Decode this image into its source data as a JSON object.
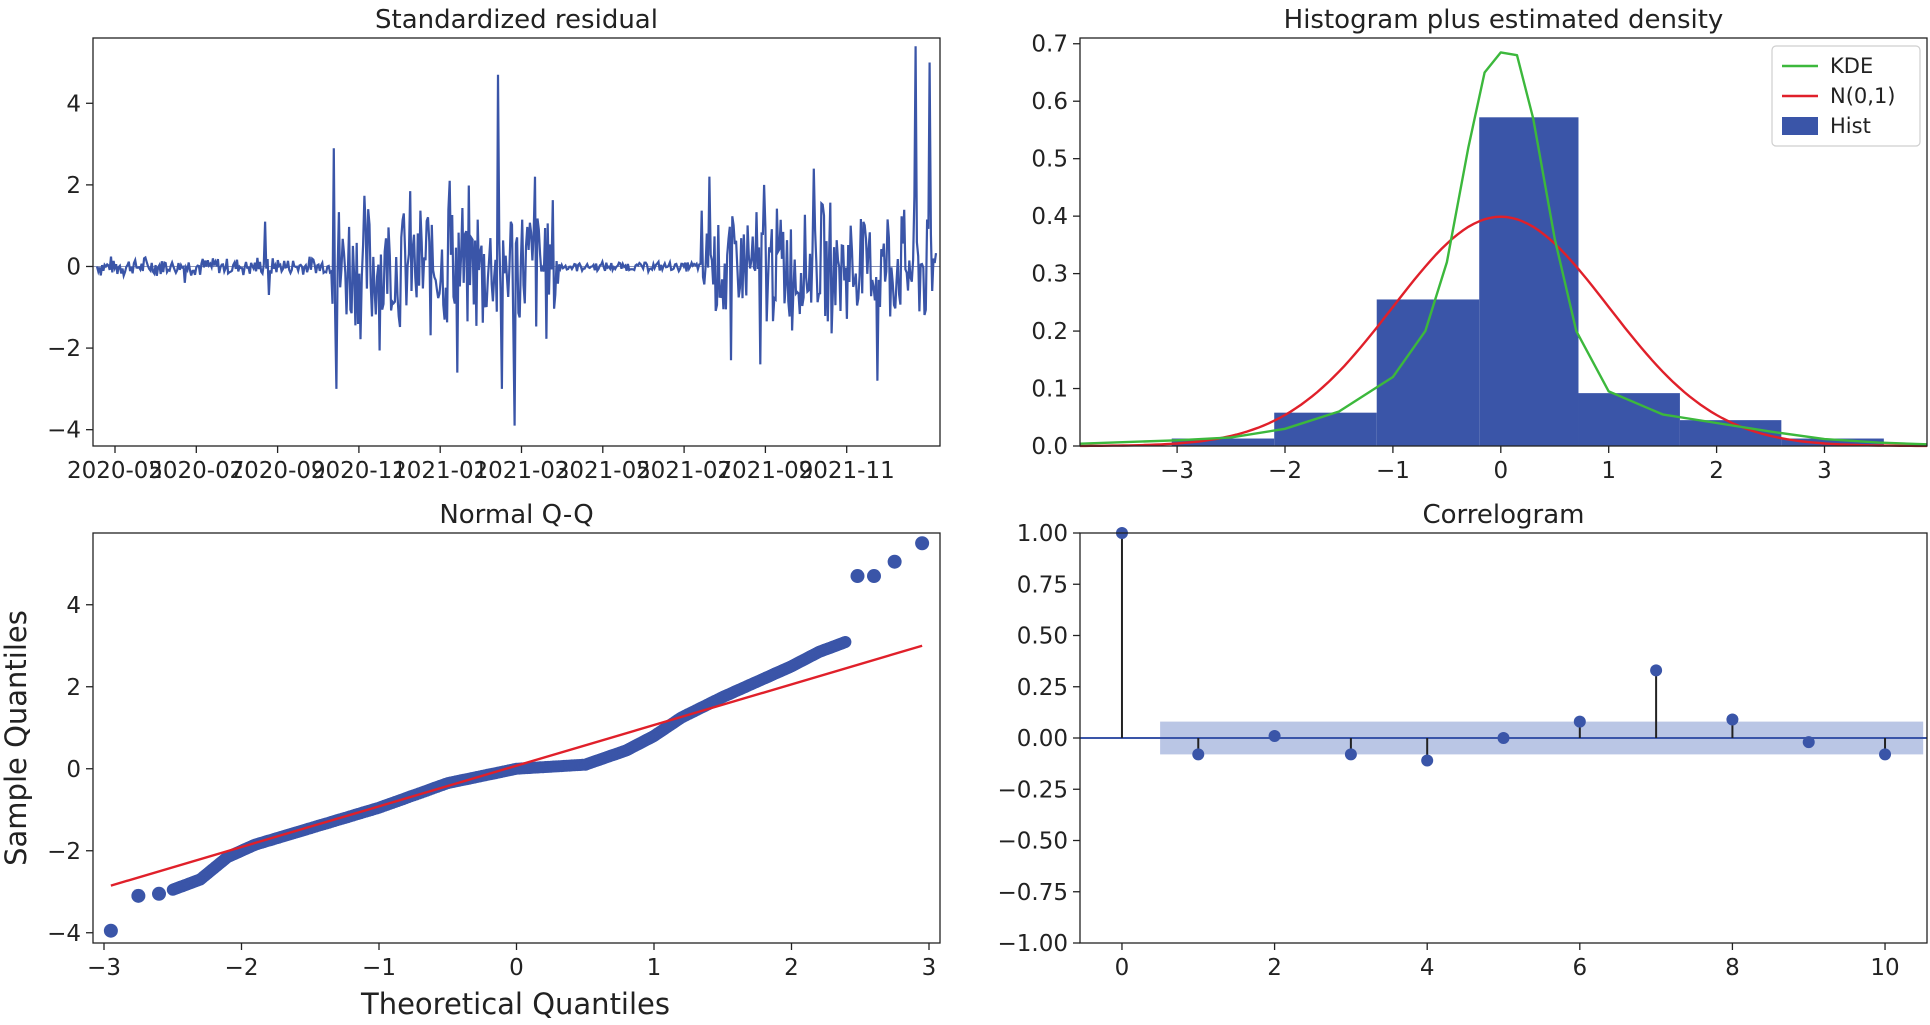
{
  "chart_data": [
    {
      "id": "resid",
      "type": "line",
      "title": "Standardized residual",
      "xlabel": "",
      "ylabel": "",
      "x_ticks": [
        "2020-05",
        "2020-07",
        "2020-09",
        "2020-11",
        "2021-01",
        "2021-03",
        "2021-05",
        "2021-07",
        "2021-09",
        "2021-11"
      ],
      "y_ticks": [
        -4,
        -2,
        0,
        2,
        4
      ],
      "ylim": [
        -4.4,
        5.6
      ],
      "grid": false,
      "color": "#3a55a8",
      "regimes": [
        {
          "start": 0.0,
          "end": 0.28,
          "amp": 0.2
        },
        {
          "start": 0.28,
          "end": 0.55,
          "amp": 1.5
        },
        {
          "start": 0.55,
          "end": 0.72,
          "amp": 0.1
        },
        {
          "start": 0.72,
          "end": 1.0,
          "amp": 1.3
        }
      ],
      "spikes": [
        {
          "pos": 0.105,
          "value": -0.4
        },
        {
          "pos": 0.2,
          "value": 1.1
        },
        {
          "pos": 0.205,
          "value": -0.7
        },
        {
          "pos": 0.282,
          "value": 2.9
        },
        {
          "pos": 0.286,
          "value": -3.0
        },
        {
          "pos": 0.42,
          "value": 2.1
        },
        {
          "pos": 0.43,
          "value": -2.6
        },
        {
          "pos": 0.478,
          "value": 4.7
        },
        {
          "pos": 0.483,
          "value": -3.0
        },
        {
          "pos": 0.498,
          "value": -3.9
        },
        {
          "pos": 0.522,
          "value": 2.2
        },
        {
          "pos": 0.73,
          "value": 2.2
        },
        {
          "pos": 0.755,
          "value": -2.3
        },
        {
          "pos": 0.79,
          "value": -2.4
        },
        {
          "pos": 0.795,
          "value": 2.0
        },
        {
          "pos": 0.855,
          "value": 2.4
        },
        {
          "pos": 0.93,
          "value": -2.8
        },
        {
          "pos": 0.975,
          "value": 5.4
        },
        {
          "pos": 0.98,
          "value": -1.1
        },
        {
          "pos": 0.993,
          "value": 5.0
        },
        {
          "pos": 0.996,
          "value": -0.6
        }
      ]
    },
    {
      "id": "hist",
      "type": "bar",
      "title": "Histogram plus estimated density",
      "xlabel": "",
      "ylabel": "",
      "xlim": [
        -3.9,
        3.95
      ],
      "ylim": [
        0,
        0.71
      ],
      "x_ticks": [
        -3,
        -2,
        -1,
        0,
        1,
        2,
        3
      ],
      "y_ticks": [
        0.0,
        0.1,
        0.2,
        0.3,
        0.4,
        0.5,
        0.6,
        0.7
      ],
      "y_tick_labels": [
        "0.0",
        "0.1",
        "0.2",
        "0.3",
        "0.4",
        "0.5",
        "0.6",
        "0.7"
      ],
      "bins": [
        {
          "x0": -3.05,
          "x1": -2.1,
          "value": 0.013
        },
        {
          "x0": -2.1,
          "x1": -1.15,
          "value": 0.058
        },
        {
          "x0": -1.15,
          "x1": -0.2,
          "value": 0.255
        },
        {
          "x0": -0.2,
          "x1": 0.72,
          "value": 0.572
        },
        {
          "x0": 0.72,
          "x1": 1.66,
          "value": 0.092
        },
        {
          "x0": 1.66,
          "x1": 2.6,
          "value": 0.045
        },
        {
          "x0": 2.6,
          "x1": 3.55,
          "value": 0.013
        }
      ],
      "kde": {
        "x": [
          -3.9,
          -3.0,
          -2.5,
          -2.0,
          -1.5,
          -1.0,
          -0.7,
          -0.5,
          -0.3,
          -0.15,
          0.0,
          0.15,
          0.3,
          0.5,
          0.7,
          1.0,
          1.5,
          2.0,
          2.5,
          3.0,
          3.5,
          3.95
        ],
        "y": [
          0.004,
          0.01,
          0.015,
          0.03,
          0.06,
          0.12,
          0.2,
          0.32,
          0.52,
          0.65,
          0.685,
          0.68,
          0.57,
          0.36,
          0.2,
          0.095,
          0.055,
          0.04,
          0.025,
          0.012,
          0.006,
          0.003
        ]
      },
      "series": [
        {
          "name": "KDE",
          "color": "#3cb83c"
        },
        {
          "name": "N(0,1)",
          "color": "#e0202a"
        },
        {
          "name": "Hist",
          "color": "#3a55a8"
        }
      ],
      "legend": "top-right",
      "grid": false
    },
    {
      "id": "qq",
      "type": "scatter",
      "title": "Normal Q-Q",
      "xlabel": "Theoretical Quantiles",
      "ylabel": "Sample Quantiles",
      "xlim": [
        -3.08,
        3.08
      ],
      "ylim": [
        -4.25,
        5.75
      ],
      "x_ticks": [
        -3,
        -2,
        -1,
        0,
        1,
        2,
        3
      ],
      "y_ticks": [
        -4,
        -2,
        0,
        2,
        4
      ],
      "reference_line": {
        "x": [
          -2.95,
          2.95
        ],
        "y": [
          -2.85,
          3.0
        ],
        "color": "#e0202a"
      },
      "points_color": "#3a55a8",
      "outliers": [
        {
          "x": -2.95,
          "y": -3.95
        },
        {
          "x": -2.75,
          "y": -3.1
        },
        {
          "x": -2.6,
          "y": -3.05
        },
        {
          "x": 2.48,
          "y": 4.7
        },
        {
          "x": 2.6,
          "y": 4.7
        },
        {
          "x": 2.75,
          "y": 5.05
        },
        {
          "x": 2.95,
          "y": 5.5
        }
      ],
      "curve": {
        "x": [
          -2.5,
          -2.3,
          -2.1,
          -1.9,
          -1.5,
          -1.0,
          -0.5,
          0.0,
          0.5,
          0.8,
          1.0,
          1.2,
          1.5,
          1.8,
          2.0,
          2.2,
          2.4
        ],
        "y": [
          -2.95,
          -2.7,
          -2.15,
          -1.85,
          -1.45,
          -0.95,
          -0.35,
          0.0,
          0.1,
          0.45,
          0.8,
          1.25,
          1.75,
          2.2,
          2.5,
          2.85,
          3.1
        ]
      },
      "grid": false
    },
    {
      "id": "acf",
      "type": "scatter",
      "title": "Correlogram",
      "xlabel": "",
      "ylabel": "",
      "xlim": [
        -0.55,
        10.55
      ],
      "ylim": [
        -1.0,
        1.0
      ],
      "x_ticks": [
        0,
        2,
        4,
        6,
        8,
        10
      ],
      "y_ticks": [
        -1.0,
        -0.75,
        -0.5,
        -0.25,
        0.0,
        0.25,
        0.5,
        0.75,
        1.0
      ],
      "y_tick_labels": [
        "−1.00",
        "−0.75",
        "−0.50",
        "−0.25",
        "0.00",
        "0.25",
        "0.50",
        "0.75",
        "1.00"
      ],
      "lags": [
        0,
        1,
        2,
        3,
        4,
        5,
        6,
        7,
        8,
        9,
        10
      ],
      "values": [
        1.0,
        -0.08,
        0.01,
        -0.08,
        -0.11,
        0.0,
        0.08,
        0.33,
        0.09,
        -0.02,
        -0.08
      ],
      "confidence_band": {
        "x0": 0.5,
        "x1": 10.5,
        "lower": -0.08,
        "upper": 0.08
      },
      "color": "#3a55a8",
      "stem_color": "#222222",
      "grid": false
    }
  ]
}
